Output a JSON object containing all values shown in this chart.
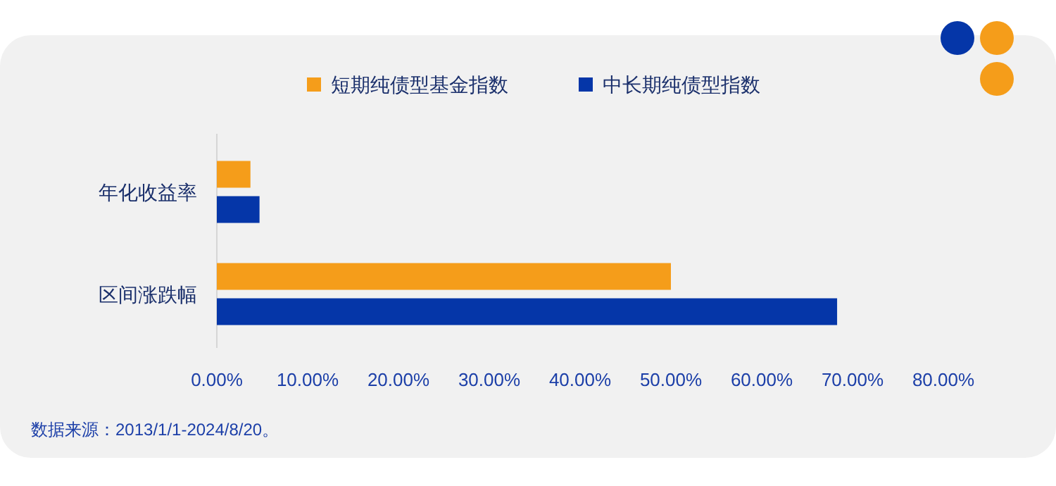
{
  "chart_data": {
    "type": "bar",
    "orientation": "horizontal",
    "categories": [
      "年化收益率",
      "区间涨跌幅"
    ],
    "series": [
      {
        "name": "短期纯债型基金指数",
        "color": "#f59d1a",
        "values": [
          3.7,
          50.0
        ]
      },
      {
        "name": "中长期纯债型指数",
        "color": "#0536a8",
        "values": [
          4.7,
          68.3
        ]
      }
    ],
    "xlim": [
      0,
      80
    ],
    "xticks": [
      {
        "value": 0,
        "label": "0.00%"
      },
      {
        "value": 10,
        "label": "10.00%"
      },
      {
        "value": 20,
        "label": "20.00%"
      },
      {
        "value": 30,
        "label": "30.00%"
      },
      {
        "value": 40,
        "label": "40.00%"
      },
      {
        "value": 50,
        "label": "50.00%"
      },
      {
        "value": 60,
        "label": "60.00%"
      },
      {
        "value": 70,
        "label": "70.00%"
      },
      {
        "value": 80,
        "label": "80.00%"
      }
    ],
    "grid": false,
    "legend": "top",
    "annotations": [
      "数据来源：2013/1/1-2024/8/20。"
    ]
  }
}
